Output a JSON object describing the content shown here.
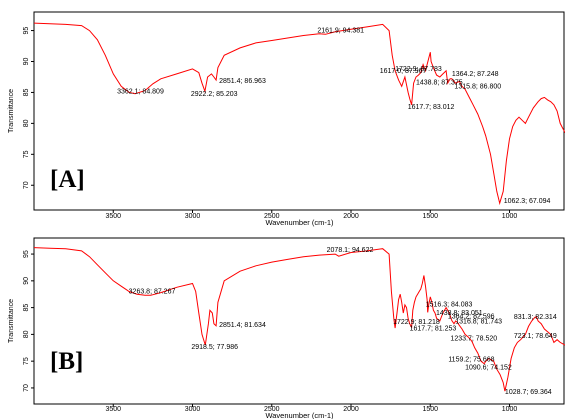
{
  "chart_data": [
    {
      "type": "line",
      "panel_label": "[A]",
      "xlabel": "Wavenumber (cm-1)",
      "ylabel": "Transmittance",
      "xlim": [
        4000,
        650
      ],
      "ylim": [
        66,
        98
      ],
      "x_ticks": [
        3500,
        3000,
        2500,
        2000,
        1500,
        1000
      ],
      "y_ticks": [
        70,
        75,
        80,
        85,
        90,
        95
      ],
      "series_color": "#ff0000",
      "points": [
        [
          4000,
          96.2
        ],
        [
          3900,
          96.1
        ],
        [
          3800,
          96.0
        ],
        [
          3700,
          95.8
        ],
        [
          3650,
          95.0
        ],
        [
          3600,
          93.5
        ],
        [
          3550,
          91.0
        ],
        [
          3500,
          88.0
        ],
        [
          3450,
          86.0
        ],
        [
          3400,
          85.0
        ],
        [
          3362,
          84.8
        ],
        [
          3300,
          85.3
        ],
        [
          3250,
          86.4
        ],
        [
          3200,
          87.2
        ],
        [
          3100,
          88.0
        ],
        [
          3000,
          88.8
        ],
        [
          2960,
          88.2
        ],
        [
          2940,
          86.5
        ],
        [
          2922,
          85.2
        ],
        [
          2905,
          87.5
        ],
        [
          2880,
          88.0
        ],
        [
          2865,
          87.5
        ],
        [
          2851,
          87.0
        ],
        [
          2840,
          89.0
        ],
        [
          2800,
          91.0
        ],
        [
          2700,
          92.2
        ],
        [
          2600,
          93.0
        ],
        [
          2500,
          93.4
        ],
        [
          2400,
          93.8
        ],
        [
          2300,
          94.2
        ],
        [
          2200,
          94.5
        ],
        [
          2161,
          94.4
        ],
        [
          2100,
          94.8
        ],
        [
          2000,
          95.2
        ],
        [
          1900,
          95.6
        ],
        [
          1800,
          96.0
        ],
        [
          1760,
          95.0
        ],
        [
          1740,
          91.0
        ],
        [
          1722,
          88.5
        ],
        [
          1700,
          87.0
        ],
        [
          1680,
          86.0
        ],
        [
          1660,
          87.5
        ],
        [
          1640,
          85.0
        ],
        [
          1630,
          84.0
        ],
        [
          1618,
          83.0
        ],
        [
          1605,
          86.5
        ],
        [
          1590,
          87.5
        ],
        [
          1575,
          87.8
        ],
        [
          1560,
          88.2
        ],
        [
          1545,
          89.5
        ],
        [
          1530,
          88.5
        ],
        [
          1510,
          90.5
        ],
        [
          1500,
          91.5
        ],
        [
          1495,
          90.0
        ],
        [
          1480,
          89.0
        ],
        [
          1460,
          87.8
        ],
        [
          1440,
          87.5
        ],
        [
          1420,
          88.0
        ],
        [
          1400,
          88.5
        ],
        [
          1390,
          86.5
        ],
        [
          1375,
          87.2
        ],
        [
          1364,
          87.2
        ],
        [
          1340,
          86.5
        ],
        [
          1316,
          86.8
        ],
        [
          1300,
          86.0
        ],
        [
          1280,
          85.5
        ],
        [
          1250,
          84.0
        ],
        [
          1230,
          83.0
        ],
        [
          1200,
          81.5
        ],
        [
          1170,
          79.5
        ],
        [
          1150,
          78.0
        ],
        [
          1120,
          75.0
        ],
        [
          1100,
          72.0
        ],
        [
          1080,
          69.0
        ],
        [
          1062,
          67.1
        ],
        [
          1040,
          69.0
        ],
        [
          1020,
          74.0
        ],
        [
          1000,
          77.5
        ],
        [
          980,
          79.5
        ],
        [
          960,
          80.5
        ],
        [
          940,
          81.0
        ],
        [
          920,
          80.5
        ],
        [
          900,
          80.0
        ],
        [
          880,
          81.0
        ],
        [
          850,
          82.5
        ],
        [
          820,
          83.5
        ],
        [
          800,
          84.0
        ],
        [
          780,
          84.2
        ],
        [
          760,
          83.8
        ],
        [
          740,
          83.5
        ],
        [
          720,
          83.0
        ],
        [
          700,
          82.0
        ],
        [
          680,
          80.0
        ],
        [
          650,
          78.5
        ]
      ],
      "annotations": [
        {
          "text": "3362.1; 84.809",
          "x": 3362,
          "y": 84.8
        },
        {
          "text": "2922.2; 85.203",
          "x": 2922,
          "y": 85.2
        },
        {
          "text": "2851.4; 86.963",
          "x": 2851,
          "y": 87.0
        },
        {
          "text": "2161.9; 94.381",
          "x": 2162,
          "y": 94.4
        },
        {
          "text": "1722.9; 87.783",
          "x": 1722,
          "y": 87.8
        },
        {
          "text": "1617.0; 87.967",
          "x": 1617,
          "y": 88.0
        },
        {
          "text": "1617.7; 83.012",
          "x": 1617,
          "y": 83.0
        },
        {
          "text": "1364.2; 87.248",
          "x": 1364,
          "y": 87.2
        },
        {
          "text": "1438.8; 87.375",
          "x": 1439,
          "y": 87.4
        },
        {
          "text": "1315.8; 86.800",
          "x": 1316,
          "y": 86.8
        },
        {
          "text": "1062.3; 67.094",
          "x": 1062,
          "y": 67.1
        }
      ]
    },
    {
      "type": "line",
      "panel_label": "[B]",
      "xlabel": "Wavenumber (cm-1)",
      "ylabel": "Transmittance",
      "xlim": [
        4000,
        650
      ],
      "ylim": [
        67,
        98
      ],
      "x_ticks": [
        3500,
        3000,
        2500,
        2000,
        1500,
        1000
      ],
      "y_ticks": [
        70,
        75,
        80,
        85,
        90,
        95
      ],
      "series_color": "#ff0000",
      "points": [
        [
          4000,
          96.2
        ],
        [
          3900,
          96.1
        ],
        [
          3800,
          96.0
        ],
        [
          3700,
          95.6
        ],
        [
          3650,
          94.5
        ],
        [
          3600,
          93.0
        ],
        [
          3550,
          91.5
        ],
        [
          3500,
          90.0
        ],
        [
          3450,
          89.0
        ],
        [
          3400,
          88.0
        ],
        [
          3350,
          87.5
        ],
        [
          3300,
          87.3
        ],
        [
          3264,
          87.3
        ],
        [
          3200,
          87.8
        ],
        [
          3100,
          88.8
        ],
        [
          3000,
          89.5
        ],
        [
          2980,
          88.0
        ],
        [
          2960,
          84.0
        ],
        [
          2940,
          80.0
        ],
        [
          2919,
          78.0
        ],
        [
          2900,
          82.0
        ],
        [
          2890,
          84.5
        ],
        [
          2875,
          84.0
        ],
        [
          2865,
          82.0
        ],
        [
          2851,
          81.6
        ],
        [
          2840,
          86.0
        ],
        [
          2800,
          90.0
        ],
        [
          2700,
          91.8
        ],
        [
          2600,
          92.8
        ],
        [
          2500,
          93.5
        ],
        [
          2400,
          94.0
        ],
        [
          2300,
          94.5
        ],
        [
          2200,
          94.8
        ],
        [
          2100,
          95.0
        ],
        [
          2078,
          94.6
        ],
        [
          2000,
          95.3
        ],
        [
          1900,
          95.6
        ],
        [
          1800,
          96.0
        ],
        [
          1760,
          95.0
        ],
        [
          1745,
          88.0
        ],
        [
          1730,
          83.0
        ],
        [
          1722,
          81.2
        ],
        [
          1710,
          84.0
        ],
        [
          1700,
          86.5
        ],
        [
          1690,
          87.5
        ],
        [
          1680,
          86.0
        ],
        [
          1670,
          84.0
        ],
        [
          1660,
          85.5
        ],
        [
          1650,
          85.0
        ],
        [
          1640,
          83.0
        ],
        [
          1630,
          82.0
        ],
        [
          1618,
          81.3
        ],
        [
          1610,
          84.5
        ],
        [
          1600,
          86.0
        ],
        [
          1590,
          87.0
        ],
        [
          1580,
          87.5
        ],
        [
          1570,
          88.0
        ],
        [
          1560,
          88.5
        ],
        [
          1550,
          89.5
        ],
        [
          1540,
          91.0
        ],
        [
          1530,
          89.0
        ],
        [
          1520,
          86.5
        ],
        [
          1516,
          84.1
        ],
        [
          1510,
          85.5
        ],
        [
          1500,
          87.0
        ],
        [
          1490,
          86.0
        ],
        [
          1480,
          84.5
        ],
        [
          1470,
          84.0
        ],
        [
          1460,
          83.0
        ],
        [
          1440,
          82.5
        ],
        [
          1420,
          84.0
        ],
        [
          1400,
          85.0
        ],
        [
          1380,
          84.0
        ],
        [
          1364,
          82.6
        ],
        [
          1350,
          82.0
        ],
        [
          1340,
          82.5
        ],
        [
          1330,
          82.3
        ],
        [
          1317,
          81.7
        ],
        [
          1300,
          81.0
        ],
        [
          1280,
          80.0
        ],
        [
          1260,
          79.5
        ],
        [
          1240,
          78.8
        ],
        [
          1234,
          78.5
        ],
        [
          1220,
          77.5
        ],
        [
          1200,
          76.5
        ],
        [
          1180,
          75.0
        ],
        [
          1160,
          74.5
        ],
        [
          1150,
          75.0
        ],
        [
          1130,
          75.5
        ],
        [
          1100,
          75.0
        ],
        [
          1090,
          74.2
        ],
        [
          1080,
          73.5
        ],
        [
          1060,
          72.5
        ],
        [
          1040,
          71.0
        ],
        [
          1029,
          69.4
        ],
        [
          1010,
          72.0
        ],
        [
          990,
          75.5
        ],
        [
          970,
          77.5
        ],
        [
          950,
          78.5
        ],
        [
          930,
          79.0
        ],
        [
          900,
          80.0
        ],
        [
          880,
          81.5
        ],
        [
          860,
          82.5
        ],
        [
          840,
          83.2
        ],
        [
          831,
          83.3
        ],
        [
          820,
          82.5
        ],
        [
          800,
          82.0
        ],
        [
          780,
          81.0
        ],
        [
          760,
          80.5
        ],
        [
          740,
          80.0
        ],
        [
          720,
          78.5
        ],
        [
          700,
          79.0
        ],
        [
          680,
          78.5
        ],
        [
          650,
          78.0
        ]
      ],
      "annotations": [
        {
          "text": "3263.8; 87.267",
          "x": 3264,
          "y": 87.3
        },
        {
          "text": "2918.5; 77.986",
          "x": 2919,
          "y": 78.0
        },
        {
          "text": "2851.4; 81.634",
          "x": 2851,
          "y": 81.6
        },
        {
          "text": "2078.1; 94.622",
          "x": 2078,
          "y": 94.6
        },
        {
          "text": "1722.9; 81.218",
          "x": 1722,
          "y": 81.2
        },
        {
          "text": "1617.7; 81.253",
          "x": 1618,
          "y": 81.3
        },
        {
          "text": "1516.3; 84.083",
          "x": 1516,
          "y": 84.1
        },
        {
          "text": "1438.8; 83.051",
          "x": 1439,
          "y": 83.1
        },
        {
          "text": "1364.2; 82.596",
          "x": 1364,
          "y": 82.6
        },
        {
          "text": "1316.8; 81.743",
          "x": 1317,
          "y": 81.7
        },
        {
          "text": "1233.7; 78.520",
          "x": 1234,
          "y": 78.5
        },
        {
          "text": "723.1; 78.649",
          "x": 723,
          "y": 78.6
        },
        {
          "text": "1159.2; 75.668",
          "x": 1159,
          "y": 75.7
        },
        {
          "text": "1090.6; 74.152",
          "x": 1091,
          "y": 74.2
        },
        {
          "text": "1028.7; 69.364",
          "x": 1029,
          "y": 69.4
        },
        {
          "text": "831.3; 82.314",
          "x": 831,
          "y": 82.3
        }
      ]
    }
  ]
}
